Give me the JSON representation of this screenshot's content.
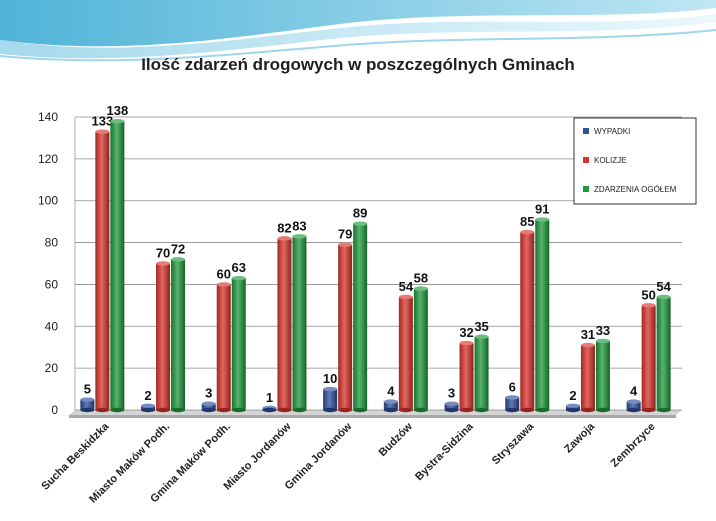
{
  "chart_data": {
    "type": "bar",
    "title": "Ilość zdarzeń drogowych w poszczególnych Gminach",
    "categories": [
      "Sucha Beskidzka",
      "Miasto Maków Podh.",
      "Gmina Maków Podh.",
      "Miasto Jordanów",
      "Gmina Jordanów",
      "Budzów",
      "Bystra-Sidzina",
      "Stryszawa",
      "Zawoja",
      "Zembrzyce"
    ],
    "series": [
      {
        "name": "WYPADKI",
        "color": "#2e4f9c",
        "values": [
          5,
          2,
          3,
          1,
          10,
          4,
          3,
          6,
          2,
          4
        ]
      },
      {
        "name": "KOLIZJE",
        "color": "#d9342b",
        "values": [
          133,
          70,
          60,
          82,
          79,
          54,
          32,
          85,
          31,
          50
        ]
      },
      {
        "name": "ZDARZENIA OGÓŁEM",
        "color": "#1f9a3c",
        "values": [
          138,
          72,
          63,
          83,
          89,
          58,
          35,
          91,
          33,
          54
        ]
      }
    ],
    "yticks": [
      0,
      20,
      40,
      60,
      80,
      100,
      120,
      140
    ],
    "ylim": [
      0,
      140
    ],
    "xlabel": "",
    "ylabel": "",
    "grid": true,
    "legend_position": "top-right"
  }
}
